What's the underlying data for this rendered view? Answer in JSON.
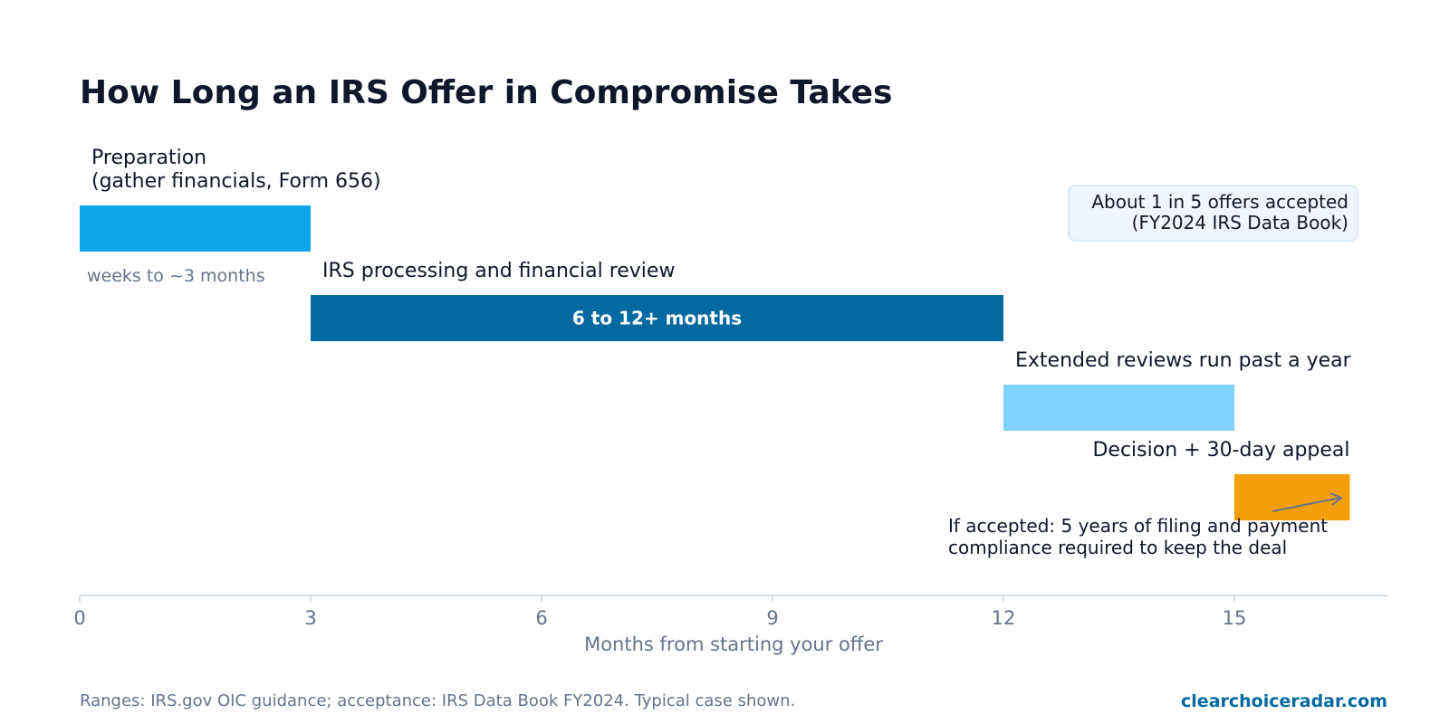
{
  "chart_data": {
    "type": "gantt",
    "title": "How Long an IRS Offer in Compromise Takes",
    "xlabel": "Months from starting your offer",
    "xlim": [
      0,
      17
    ],
    "xticks": [
      0,
      3,
      6,
      9,
      12,
      15
    ],
    "tasks": [
      {
        "label_lines": [
          "Preparation",
          "(gather financials, Form 656)"
        ],
        "start": 0,
        "end": 3,
        "color": "#0ea5e9",
        "sublabel": "weeks to ~3 months"
      },
      {
        "label_lines": [
          "IRS processing and financial review"
        ],
        "start": 3,
        "end": 12,
        "color": "#0369a1",
        "bar_text": "6 to 12+ months"
      },
      {
        "label_lines": [
          "Extended reviews run past a year"
        ],
        "start": 12,
        "end": 15,
        "color": "#7dd3fc"
      },
      {
        "label_lines": [
          "Decision + 30-day appeal"
        ],
        "start": 15,
        "end": 16.5,
        "color": "#f59e0b"
      }
    ],
    "callout": {
      "lines": [
        "About 1 in 5 offers accepted",
        "(FY2024 IRS Data Book)"
      ],
      "position": "top-right"
    },
    "annotation": {
      "lines": [
        "If accepted: 5 years of filing and payment",
        "compliance required to keep the deal"
      ]
    }
  },
  "footer": {
    "source": "Ranges: IRS.gov OIC guidance; acceptance: IRS Data Book FY2024. Typical case shown.",
    "brand": "clearchoiceradar.com"
  },
  "colors": {
    "axis": "#cbd5e1",
    "callout_fill": "#eff6ff",
    "callout_stroke": "#dbeafe",
    "arrow": "#64748b"
  }
}
